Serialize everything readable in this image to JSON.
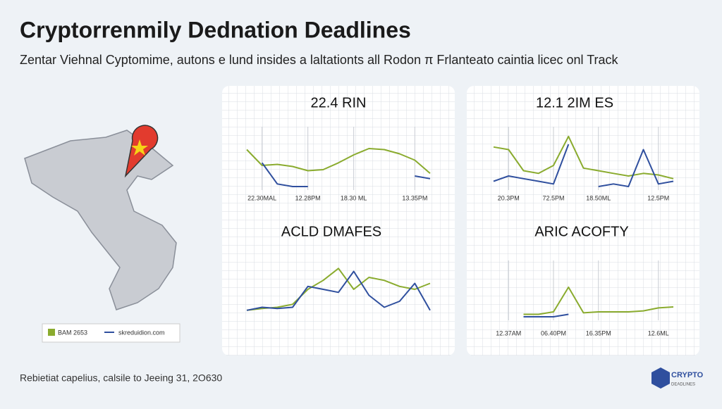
{
  "header": {
    "title": "Cryptorrenmily Dednation Deadlines",
    "subtitle": "Zentar Viehnal Cyptomime, autons e lund insides a laltationts all Rodon π Frlanteato caintia licec onl Track"
  },
  "legend": [
    {
      "label": "BAM 2653",
      "color": "#8aab2e"
    },
    {
      "label": "skreduidion.com",
      "color": "#2f4f9e"
    }
  ],
  "footer": "Rebietiat capelius, calsile to Jeeing 31, 2O630",
  "logo": {
    "title": "CRYPTO",
    "subtitle": "DEADLINES"
  },
  "chart_data": [
    {
      "type": "line",
      "title": "22.4 RIN",
      "x": [
        0,
        1,
        2,
        3,
        4,
        5,
        6,
        7,
        8,
        9,
        10,
        11,
        12
      ],
      "xlim": [
        0,
        12
      ],
      "ylim": [
        0,
        100
      ],
      "xticks": [
        {
          "value": 1,
          "label": "22.30MAL"
        },
        {
          "value": 4,
          "label": "12.28PM"
        },
        {
          "value": 7,
          "label": "18.30 ML"
        },
        {
          "value": 11,
          "label": "13.35PM"
        }
      ],
      "series": [
        {
          "color": "#8aab2e",
          "values": [
            70,
            40,
            42,
            38,
            30,
            32,
            45,
            60,
            72,
            70,
            62,
            50,
            25
          ]
        },
        {
          "color": "#2f4f9e",
          "values": [
            null,
            45,
            5,
            0,
            0,
            null,
            null,
            null,
            null,
            null,
            null,
            20,
            15
          ]
        }
      ]
    },
    {
      "type": "line",
      "title": "12.1 2IM ES",
      "x": [
        0,
        1,
        2,
        3,
        4,
        5,
        6,
        7,
        8,
        9,
        10,
        11,
        12
      ],
      "xlim": [
        0,
        12
      ],
      "ylim": [
        0,
        100
      ],
      "xticks": [
        {
          "value": 1,
          "label": "20.3PM"
        },
        {
          "value": 4,
          "label": "72.5PM"
        },
        {
          "value": 7,
          "label": "18.50ML"
        },
        {
          "value": 11,
          "label": "12.5PM"
        }
      ],
      "series": [
        {
          "color": "#8aab2e",
          "values": [
            75,
            70,
            30,
            25,
            40,
            95,
            35,
            30,
            25,
            20,
            25,
            22,
            15
          ]
        },
        {
          "color": "#2f4f9e",
          "values": [
            10,
            20,
            15,
            10,
            5,
            80,
            null,
            0,
            5,
            0,
            70,
            5,
            10
          ]
        }
      ]
    },
    {
      "type": "line",
      "title": "ACLD DMAFES",
      "x": [
        0,
        1,
        2,
        3,
        4,
        5,
        6,
        7,
        8,
        9,
        10,
        11,
        12
      ],
      "xlim": [
        0,
        12
      ],
      "ylim": [
        0,
        100
      ],
      "series": [
        {
          "color": "#8aab2e",
          "values": [
            5,
            8,
            10,
            15,
            40,
            55,
            75,
            40,
            60,
            55,
            45,
            40,
            50
          ]
        },
        {
          "color": "#2f4f9e",
          "values": [
            5,
            10,
            8,
            10,
            45,
            40,
            35,
            70,
            30,
            10,
            20,
            50,
            5
          ]
        }
      ]
    },
    {
      "type": "line",
      "title": "ARIC ACOFTY",
      "x": [
        0,
        1,
        2,
        3,
        4,
        5,
        6,
        7,
        8,
        9,
        10,
        11,
        12
      ],
      "xlim": [
        0,
        12
      ],
      "ylim": [
        0,
        100
      ],
      "xticks": [
        {
          "value": 1,
          "label": "12.37AM"
        },
        {
          "value": 4,
          "label": "06.40PM"
        },
        {
          "value": 7,
          "label": "16.35PM"
        },
        {
          "value": 11,
          "label": "12.6ML"
        }
      ],
      "series": [
        {
          "color": "#8aab2e",
          "values": [
            null,
            null,
            5,
            5,
            10,
            60,
            8,
            10,
            10,
            10,
            12,
            18,
            20
          ]
        },
        {
          "color": "#2f4f9e",
          "values": [
            null,
            null,
            0,
            0,
            0,
            5,
            null,
            null,
            null,
            null,
            null,
            null,
            null
          ]
        }
      ]
    }
  ]
}
